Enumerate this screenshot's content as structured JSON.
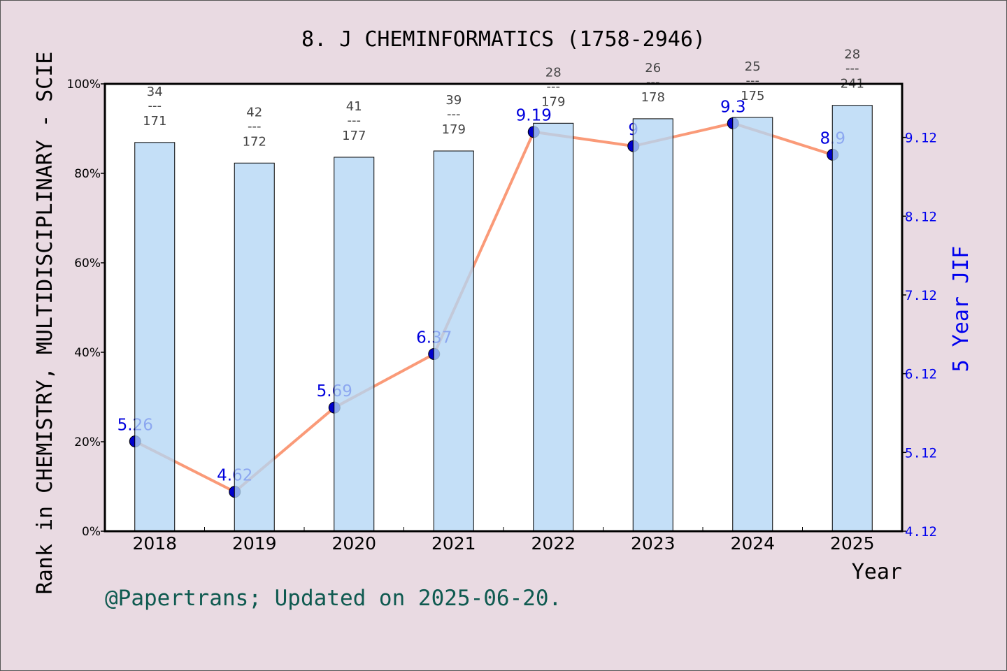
{
  "chart_data": {
    "type": "bar+line",
    "title": "8. J CHEMINFORMATICS (1758-2946)",
    "xlabel": "Year",
    "ylabel_left": "Rank in CHEMISTRY, MULTIDISCIPLINARY - SCIE",
    "ylabel_right": "5 Year JIF",
    "categories": [
      "2018",
      "2019",
      "2020",
      "2021",
      "2022",
      "2023",
      "2024",
      "2025"
    ],
    "left_axis": {
      "ylim": [
        0,
        100
      ],
      "ticks": [
        "0%",
        "20%",
        "40%",
        "60%",
        "80%",
        "100%"
      ],
      "tick_values": [
        0,
        20,
        40,
        60,
        80,
        100
      ]
    },
    "right_axis": {
      "ylim": [
        4.12,
        9.8
      ],
      "ticks": [
        "4.12",
        "5.12",
        "6.12",
        "7.12",
        "8.12",
        "9.12"
      ],
      "tick_values": [
        4.12,
        5.12,
        6.12,
        7.12,
        8.12,
        9.12
      ]
    },
    "bars": {
      "axis": "left",
      "values": [
        86.9,
        82.3,
        83.6,
        85.0,
        91.2,
        92.2,
        92.5,
        95.2
      ],
      "rank_labels": [
        {
          "rank": "34",
          "total": "171"
        },
        {
          "rank": "42",
          "total": "172"
        },
        {
          "rank": "41",
          "total": "177"
        },
        {
          "rank": "39",
          "total": "179"
        },
        {
          "rank": "28",
          "total": "179"
        },
        {
          "rank": "26",
          "total": "178"
        },
        {
          "rank": "25",
          "total": "175"
        },
        {
          "rank": "28",
          "total": "241"
        }
      ],
      "separator": "---",
      "color": "#c3dff7"
    },
    "line": {
      "axis": "right",
      "values": [
        5.26,
        4.62,
        5.69,
        6.37,
        9.19,
        9.01,
        9.3,
        8.9
      ],
      "labels": [
        "5.26",
        "4.62",
        "5.69",
        "6.37",
        "9.19",
        "9",
        "9.3",
        "8.9"
      ],
      "color": "#fa9a78",
      "marker_color": "#0000cc"
    },
    "grid": false
  },
  "footer": "@Papertrans; Updated on 2025-06-20."
}
